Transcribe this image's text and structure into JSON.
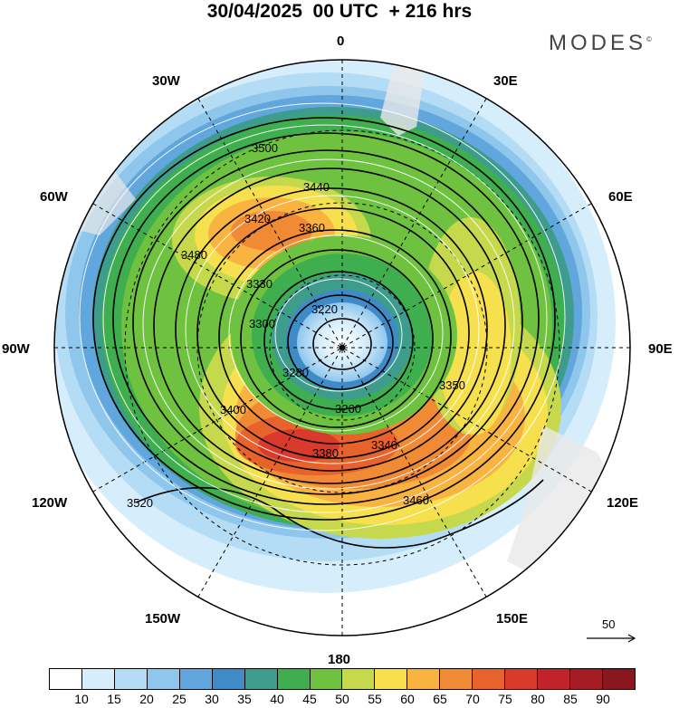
{
  "title": "30/04/2025  00 UTC  + 216 hrs",
  "brand": "MODES",
  "brand_mark": "©",
  "longitude_labels": [
    "0",
    "30E",
    "60E",
    "90E",
    "120E",
    "150E",
    "180",
    "150W",
    "120W",
    "90W",
    "60W",
    "30W"
  ],
  "contour_labels": [
    "3220",
    "3260",
    "3280",
    "3300",
    "3330",
    "3340",
    "3350",
    "3360",
    "3380",
    "3400",
    "3420",
    "3440",
    "3460",
    "3480",
    "3500",
    "3520"
  ],
  "wind_reference": {
    "label": "50",
    "icon": "arrow-right-icon"
  },
  "colorbar": {
    "ticks": [
      "10",
      "15",
      "20",
      "25",
      "30",
      "35",
      "40",
      "45",
      "50",
      "55",
      "60",
      "65",
      "70",
      "75",
      "80",
      "85",
      "90"
    ],
    "colors": [
      "#ffffff",
      "#d6eefb",
      "#b4dcf5",
      "#8fc6ec",
      "#61a6dc",
      "#3f8bc8",
      "#3e9c8d",
      "#3fae4e",
      "#6ec23f",
      "#c6d84b",
      "#f7e04d",
      "#f9b340",
      "#f08a34",
      "#e8622b",
      "#d93a2b",
      "#c2232a",
      "#a51c25",
      "#8a1620"
    ]
  }
}
